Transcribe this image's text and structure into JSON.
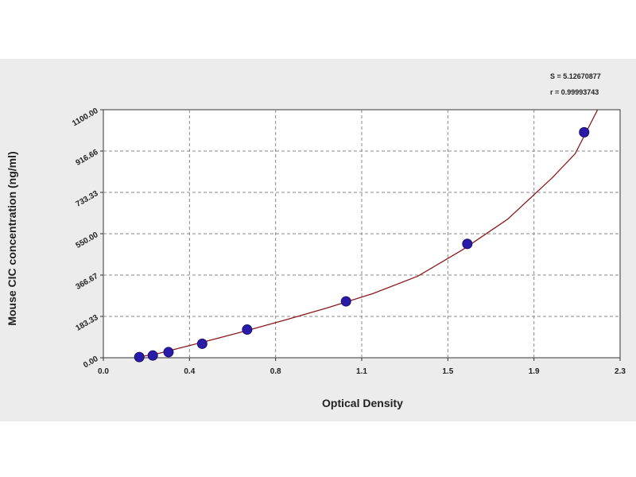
{
  "colors": {
    "background_band": "#ececec",
    "plot_background": "#ffffff",
    "curve": "#8b1a1a",
    "points": "#2a1aa8",
    "grid": "#888888"
  },
  "chart_data": {
    "type": "scatter",
    "title": "",
    "xlabel": "Optical Density",
    "ylabel": "Mouse CIC concentration (ng/ml)",
    "xlim": [
      0.0,
      2.3
    ],
    "ylim": [
      0,
      1100
    ],
    "x_ticks": [
      "0.0",
      "0.4",
      "0.8",
      "1.1",
      "1.5",
      "1.9",
      "2.3"
    ],
    "y_ticks": [
      "0.00",
      "183.33",
      "366.67",
      "550.00",
      "733.33",
      "916.66",
      "1100.00"
    ],
    "grid": true,
    "series": [
      {
        "kind": "points",
        "x": [
          0.16,
          0.22,
          0.29,
          0.44,
          0.64,
          1.08,
          1.62,
          2.14
        ],
        "y": [
          3,
          10,
          25,
          62,
          125,
          250,
          505,
          1000
        ]
      },
      {
        "kind": "fitted-curve",
        "x": [
          0.14,
          0.25,
          0.4,
          0.6,
          0.8,
          1.0,
          1.2,
          1.4,
          1.6,
          1.8,
          2.0,
          2.1,
          2.2
        ],
        "y": [
          0,
          20,
          58,
          110,
          165,
          222,
          285,
          362,
          480,
          615,
          800,
          905,
          1100
        ]
      }
    ],
    "annotations": [
      "S = 5.12670877",
      "r = 0.99993743"
    ]
  }
}
